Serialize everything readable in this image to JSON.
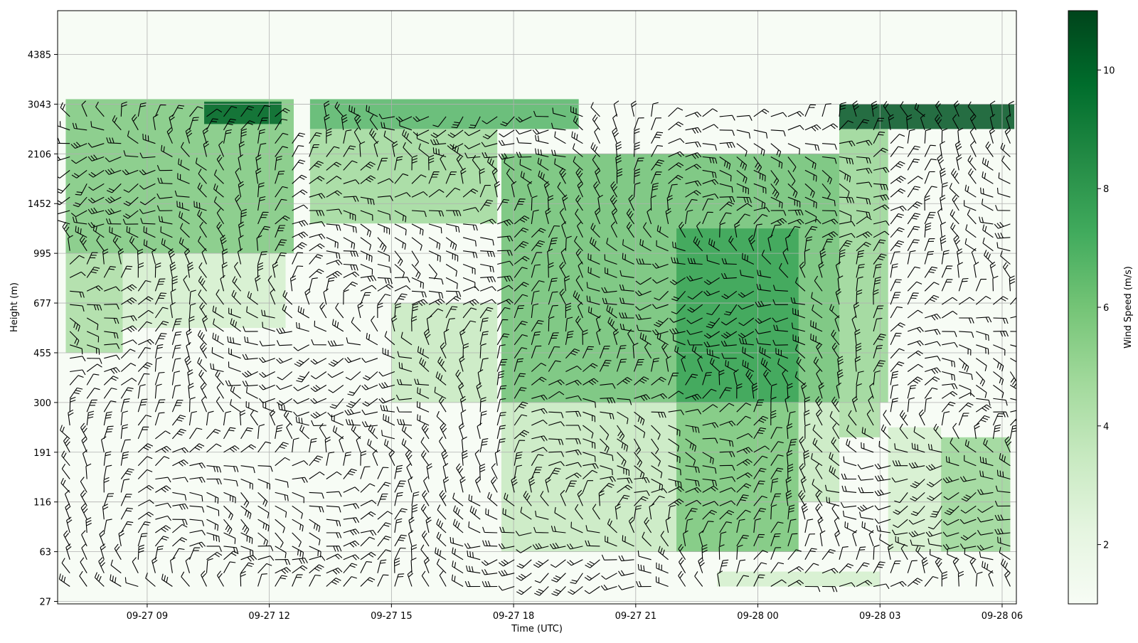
{
  "chart_data": {
    "type": "heatmap",
    "title": "",
    "xlabel": "Time (UTC)",
    "ylabel": "Height (m)",
    "x_ticks": [
      "09-27 09",
      "09-27 12",
      "09-27 15",
      "09-27 18",
      "09-27 21",
      "09-28 00",
      "09-28 03",
      "09-28 06"
    ],
    "x_tick_hours": [
      9,
      12,
      15,
      18,
      21,
      24,
      27,
      30
    ],
    "x_range_hours": [
      6.8,
      30.35
    ],
    "y_ticks": [
      "27",
      "63",
      "116",
      "191",
      "300",
      "455",
      "677",
      "995",
      "1452",
      "2106",
      "3043",
      "4385"
    ],
    "y_tick_index": [
      0,
      1,
      2,
      3,
      4,
      5,
      6,
      7,
      8,
      9,
      10,
      11
    ],
    "y_range_index": [
      -0.05,
      11.88
    ],
    "grid": true,
    "colorbar": {
      "label": "Wind Speed (m/s)",
      "ticks": [
        "2",
        "4",
        "6",
        "8",
        "10"
      ],
      "tick_values": [
        2,
        4,
        6,
        8,
        10
      ],
      "range": [
        1,
        11
      ],
      "colormap": "Greens"
    },
    "overlay": "wind barbs",
    "wind_speed_regions": [
      {
        "t": [
          7.0,
          12.6
        ],
        "z": [
          7.0,
          10.1
        ],
        "speed": 5.8
      },
      {
        "t": [
          10.4,
          12.3
        ],
        "z": [
          9.6,
          10.05
        ],
        "speed": 10.0
      },
      {
        "t": [
          7.0,
          8.4
        ],
        "z": [
          5.0,
          7.0
        ],
        "speed": 4.5
      },
      {
        "t": [
          8.4,
          12.4
        ],
        "z": [
          5.5,
          7.0
        ],
        "speed": 3.0
      },
      {
        "t": [
          13.0,
          19.6
        ],
        "z": [
          9.5,
          10.1
        ],
        "speed": 6.8
      },
      {
        "t": [
          13.0,
          17.6
        ],
        "z": [
          7.6,
          9.5
        ],
        "speed": 4.8
      },
      {
        "t": [
          15.0,
          17.6
        ],
        "z": [
          4.0,
          6.0
        ],
        "speed": 3.5
      },
      {
        "t": [
          17.7,
          26.0
        ],
        "z": [
          4.0,
          9.0
        ],
        "speed": 6.2
      },
      {
        "t": [
          22.0,
          25.0
        ],
        "z": [
          4.0,
          7.5
        ],
        "speed": 7.5
      },
      {
        "t": [
          17.7,
          22.0
        ],
        "z": [
          1.0,
          4.0
        ],
        "speed": 3.5
      },
      {
        "t": [
          22.0,
          25.0
        ],
        "z": [
          1.0,
          4.0
        ],
        "speed": 6.0
      },
      {
        "t": [
          25.0,
          26.0
        ],
        "z": [
          2.0,
          4.0
        ],
        "speed": 3.5
      },
      {
        "t": [
          23.0,
          27.0
        ],
        "z": [
          0.3,
          0.6
        ],
        "speed": 3.0
      },
      {
        "t": [
          26.0,
          27.0
        ],
        "z": [
          3.3,
          4.0
        ],
        "speed": 4.5
      },
      {
        "t": [
          26.0,
          27.2
        ],
        "z": [
          4.0,
          9.5
        ],
        "speed": 5.0
      },
      {
        "t": [
          26.0,
          30.3
        ],
        "z": [
          9.5,
          10.0
        ],
        "speed": 10.5
      },
      {
        "t": [
          28.5,
          30.2
        ],
        "z": [
          1.0,
          3.3
        ],
        "speed": 5.0
      },
      {
        "t": [
          27.2,
          28.5
        ],
        "z": [
          1.0,
          3.5
        ],
        "speed": 3.0
      }
    ]
  }
}
